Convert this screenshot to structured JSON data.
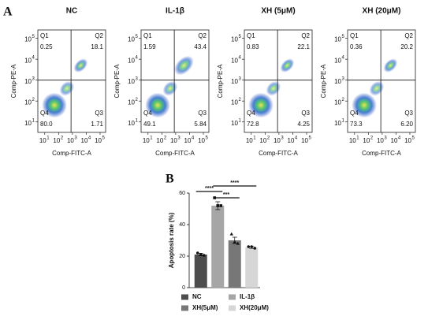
{
  "panel_a": {
    "letter": "A",
    "tick_base": "10",
    "xticks": [
      1,
      2,
      3,
      4,
      5
    ],
    "yticks": [
      1,
      2,
      3,
      4,
      5
    ],
    "xlim": [
      0.5,
      5.4
    ],
    "ylim": [
      0.5,
      5.4
    ],
    "xlabel": "Comp-FITC-A",
    "ylabel": "Comp-PE-A",
    "gate_x": 2.9,
    "gate_y": 3.0,
    "quadrants": [
      "Q1",
      "Q2",
      "Q3",
      "Q4"
    ],
    "plots": [
      {
        "title": "NC",
        "values": [
          0.25,
          18.1,
          1.71,
          80
        ],
        "value_labels": [
          "0.25",
          "18.1",
          "1.71",
          "80.0"
        ]
      },
      {
        "title": "IL-1β",
        "values": [
          1.59,
          43.4,
          5.84,
          49.1
        ],
        "value_labels": [
          "1.59",
          "43.4",
          "5.84",
          "49.1"
        ]
      },
      {
        "title": "XH (5μM)",
        "values": [
          0.83,
          22.1,
          4.25,
          72.8
        ],
        "value_labels": [
          "0.83",
          "22.1",
          "4.25",
          "72.8"
        ]
      },
      {
        "title": "XH (20μM)",
        "values": [
          0.36,
          20.2,
          6.2,
          73.3
        ],
        "value_labels": [
          "0.36",
          "20.2",
          "6.20",
          "73.3"
        ]
      }
    ]
  },
  "chart_data": {
    "type": "bar",
    "letter": "B",
    "ylabel": "Apoptosis rate (%)",
    "categories": [
      "NC",
      "IL-1β",
      "XH(5μM)",
      "XH(20μM)"
    ],
    "values": [
      21,
      52,
      30,
      25.5
    ],
    "errors": [
      0.8,
      2.5,
      2,
      0.6
    ],
    "colors": [
      "#4d4d4d",
      "#a6a6a6",
      "#777777",
      "#d6d6d6"
    ],
    "points": [
      [
        22,
        21,
        20.5
      ],
      [
        57,
        52,
        52
      ],
      [
        34,
        29,
        28
      ],
      [
        26,
        26,
        25
      ]
    ],
    "ylim": [
      0,
      60
    ],
    "yticks": [
      0,
      20,
      40,
      60
    ],
    "annotations": [
      {
        "text": "****",
        "between": [
          "NC",
          "IL-1β"
        ]
      },
      {
        "text": "***",
        "between": [
          "IL-1β",
          "XH(5μM)"
        ]
      },
      {
        "text": "****",
        "between": [
          "IL-1β",
          "XH(20μM)"
        ]
      }
    ]
  }
}
